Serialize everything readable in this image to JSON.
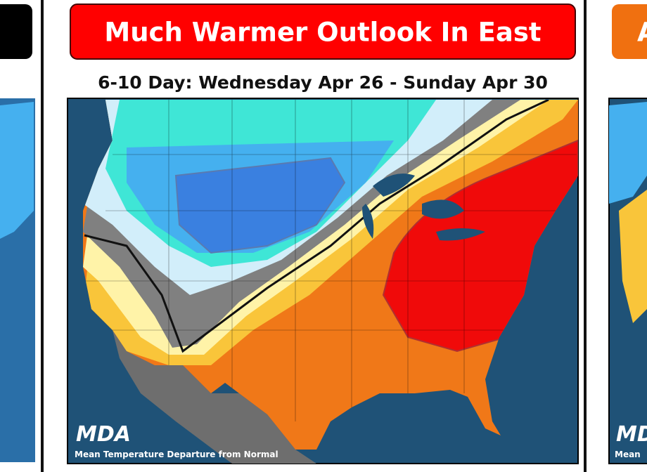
{
  "header": {
    "title": "Much Warmer Outlook In East"
  },
  "subtitle": "6-10 Day: Wednesday Apr 26 - Sunday Apr 30",
  "map": {
    "logo": "MDA",
    "caption": "Mean Temperature Departure from Normal"
  },
  "right_panel": {
    "title": "A",
    "logo": "MDA",
    "caption": "Mean"
  }
}
